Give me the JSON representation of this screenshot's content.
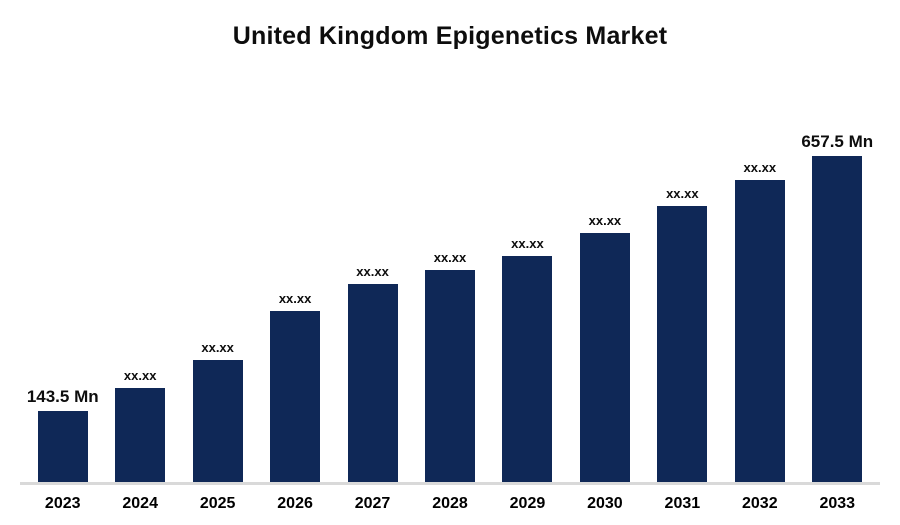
{
  "chart_data": {
    "type": "bar",
    "title": "United Kingdom Epigenetics Market",
    "categories": [
      "2023",
      "2024",
      "2025",
      "2026",
      "2027",
      "2028",
      "2029",
      "2030",
      "2031",
      "2032",
      "2033"
    ],
    "values": [
      143.5,
      190,
      247,
      345,
      400,
      427,
      455,
      502,
      556,
      610,
      657.5
    ],
    "labels": [
      "143.5 Mn",
      "xx.xx",
      "xx.xx",
      "xx.xx",
      "xx.xx",
      "xx.xx",
      "xx.xx",
      "xx.xx",
      "xx.xx",
      "xx.xx",
      "657.5 Mn"
    ],
    "unit": "Mn",
    "first_value_label": "143.5 Mn",
    "last_value_label": "657.5 Mn",
    "bar_color": "#0f2857",
    "background_color": "#ffffff",
    "axis_line_color": "#d9d9d9",
    "ylim": [
      0,
      700
    ],
    "xlabel": "",
    "ylabel": "",
    "legend": "none",
    "grid": false
  }
}
